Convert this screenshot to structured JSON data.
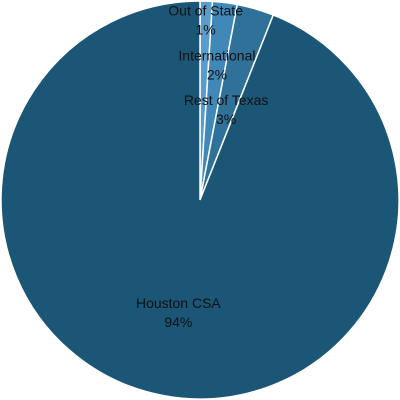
{
  "chart_data": {
    "type": "pie",
    "categories": [
      "Out of State",
      "International",
      "Rest of Texas",
      "Houston CSA"
    ],
    "values": [
      1,
      2,
      3,
      94
    ],
    "value_labels": [
      "1%",
      "2%",
      "3%",
      "94%"
    ],
    "colors": [
      "#5a9ccc",
      "#3f88b8",
      "#2f7199",
      "#1b5677"
    ]
  }
}
